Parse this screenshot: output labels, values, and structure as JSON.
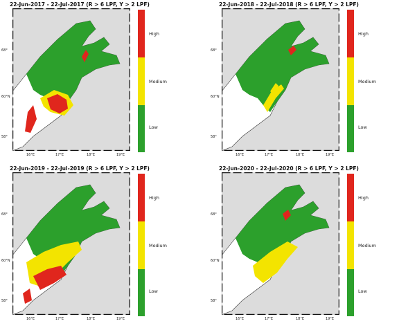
{
  "colors": {
    "high": "#e0261d",
    "medium": "#f3e400",
    "low": "#2ca02c",
    "land": "#dcdcdc",
    "sea": "#ffffff",
    "coast": "#333333"
  },
  "legend": {
    "high": "High",
    "medium": "Medium",
    "low": "Low"
  },
  "panels": [
    {
      "title": "22-Jun-2017  - 22-Jul-2017  (R > 6 LPF, Y > 2 LPF)",
      "lat_ticks": [
        "68°",
        "60°N",
        "58°"
      ],
      "lon_ticks": [
        "16°E",
        "17°E",
        "18°E",
        "19°E"
      ],
      "risk_overlay": "high-central"
    },
    {
      "title": "22-Jun-2018  - 22-Jul-2018  (R > 6 LPF, Y > 2 LPF)",
      "lat_ticks": [
        "68°",
        "60°N",
        "58°"
      ],
      "lon_ticks": [
        "16°E",
        "17°E",
        "18°E",
        "19°E"
      ],
      "risk_overlay": "medium-streaks"
    },
    {
      "title": "22-Jun-2019  - 22-Jul-2019  (R > 6 LPF, Y > 2 LPF)",
      "lat_ticks": [
        "68°",
        "60°N",
        "58°"
      ],
      "lon_ticks": [
        "16°E",
        "17°E",
        "18°E",
        "19°E"
      ],
      "risk_overlay": "mixed-south"
    },
    {
      "title": "22-Jun-2020  - 22-Jul-2020  (R > 6 LPF, Y > 2 LPF)",
      "lat_ticks": [
        "68°",
        "60°N",
        "58°"
      ],
      "lon_ticks": [
        "16°E",
        "17°E",
        "18°E",
        "19°E"
      ],
      "risk_overlay": "medium-central"
    }
  ]
}
